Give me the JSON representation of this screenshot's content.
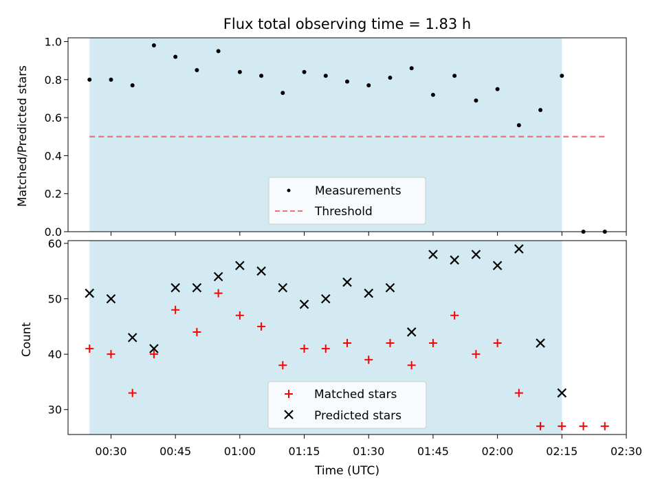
{
  "chart_data": [
    {
      "type": "scatter",
      "title": "Flux total observing time = 1.83 h",
      "ylabel": "Matched/Predicted stars",
      "xlabel": "",
      "ylim": [
        0.0,
        1.02
      ],
      "yticks": [
        "0.0",
        "0.2",
        "0.4",
        "0.6",
        "0.8",
        "1.0"
      ],
      "ytick_values": [
        0.0,
        0.2,
        0.4,
        0.6,
        0.8,
        1.0
      ],
      "shaded_interval": {
        "start": "00:25",
        "end": "02:15",
        "color": "#add8e6"
      },
      "legend_position": "lower-center",
      "series": [
        {
          "name": "Measurements",
          "marker": "dot",
          "color": "#000000",
          "x": [
            "00:25",
            "00:30",
            "00:35",
            "00:40",
            "00:45",
            "00:50",
            "00:55",
            "01:00",
            "01:05",
            "01:10",
            "01:15",
            "01:20",
            "01:25",
            "01:30",
            "01:35",
            "01:40",
            "01:45",
            "01:50",
            "01:55",
            "02:00",
            "02:05",
            "02:10",
            "02:15",
            "02:20",
            "02:25"
          ],
          "y": [
            0.8,
            0.8,
            0.77,
            0.98,
            0.92,
            0.85,
            0.95,
            0.84,
            0.82,
            0.73,
            0.84,
            0.82,
            0.79,
            0.77,
            0.81,
            0.86,
            0.72,
            0.82,
            0.69,
            0.75,
            0.56,
            0.64,
            0.82,
            0.0,
            0.0
          ]
        },
        {
          "name": "Threshold",
          "style": "dashed-line",
          "color": "#f07070",
          "x": [
            "00:25",
            "02:25"
          ],
          "y": [
            0.5,
            0.5
          ]
        }
      ]
    },
    {
      "type": "scatter",
      "title": "",
      "ylabel": "Count",
      "xlabel": "Time (UTC)",
      "ylim": [
        25.5,
        60.5
      ],
      "yticks": [
        "30",
        "40",
        "50",
        "60"
      ],
      "ytick_values": [
        30,
        40,
        50,
        60
      ],
      "xticks": [
        "00:30",
        "00:45",
        "01:00",
        "01:15",
        "01:30",
        "01:45",
        "02:00",
        "02:15",
        "02:30"
      ],
      "xlim": [
        "00:20",
        "02:30"
      ],
      "shaded_interval": {
        "start": "00:25",
        "end": "02:15",
        "color": "#add8e6"
      },
      "legend_position": "lower-center",
      "series": [
        {
          "name": "Matched stars",
          "marker": "plus",
          "color": "#ff0000",
          "x": [
            "00:25",
            "00:30",
            "00:35",
            "00:40",
            "00:45",
            "00:50",
            "00:55",
            "01:00",
            "01:05",
            "01:10",
            "01:15",
            "01:20",
            "01:25",
            "01:30",
            "01:35",
            "01:40",
            "01:45",
            "01:50",
            "01:55",
            "02:00",
            "02:05",
            "02:10",
            "02:15",
            "02:20",
            "02:25"
          ],
          "y": [
            41,
            40,
            33,
            40,
            48,
            44,
            51,
            47,
            45,
            38,
            41,
            41,
            42,
            39,
            42,
            38,
            42,
            47,
            40,
            42,
            33,
            27,
            27,
            27,
            27
          ]
        },
        {
          "name": "Predicted stars",
          "marker": "x",
          "color": "#000000",
          "x": [
            "00:25",
            "00:30",
            "00:35",
            "00:40",
            "00:45",
            "00:50",
            "00:55",
            "01:00",
            "01:05",
            "01:10",
            "01:15",
            "01:20",
            "01:25",
            "01:30",
            "01:35",
            "01:40",
            "01:45",
            "01:50",
            "01:55",
            "02:00",
            "02:05",
            "02:10",
            "02:15"
          ],
          "y": [
            51,
            50,
            43,
            41,
            52,
            52,
            54,
            56,
            55,
            52,
            49,
            50,
            53,
            51,
            52,
            44,
            58,
            57,
            58,
            56,
            59,
            42,
            33
          ]
        }
      ]
    }
  ]
}
